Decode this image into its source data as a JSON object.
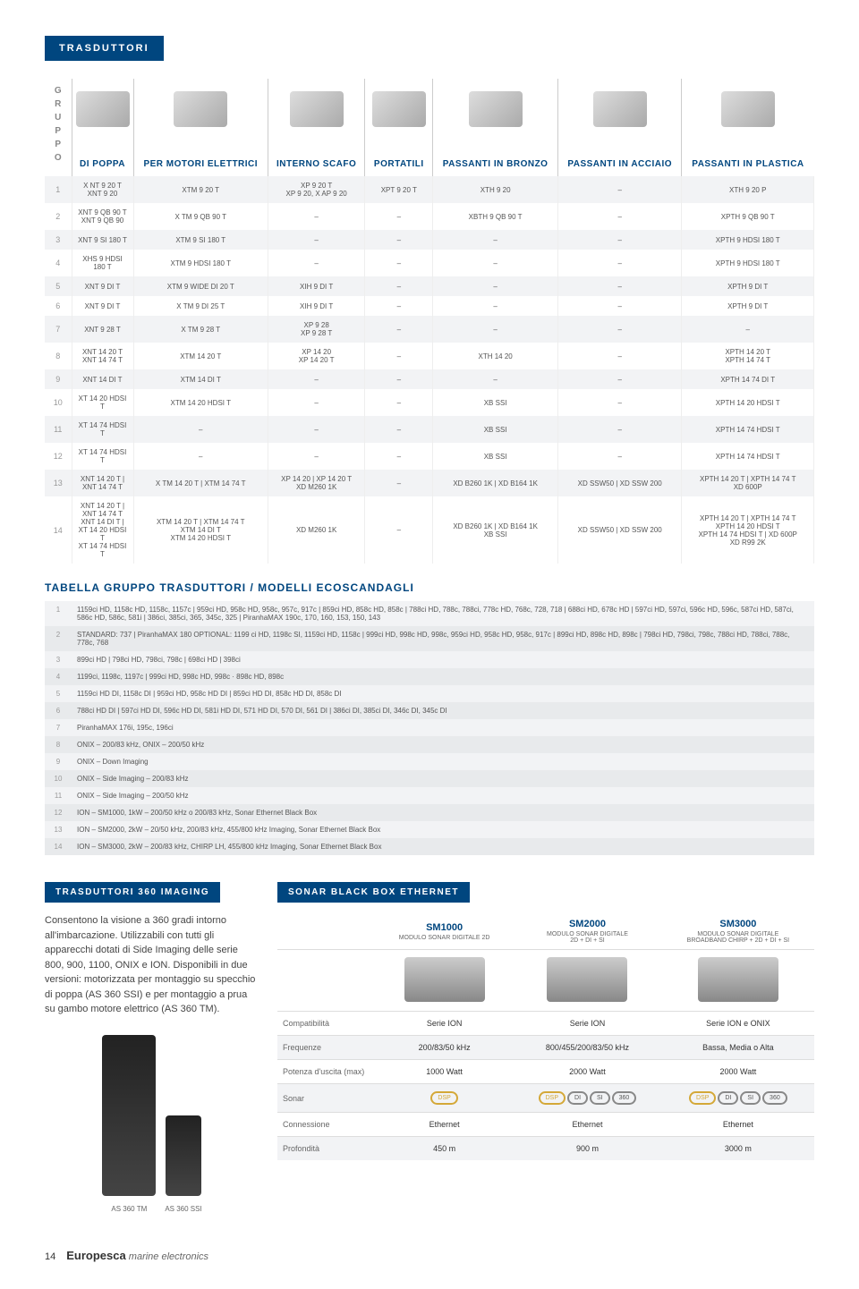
{
  "header": {
    "tab": "TRASDUTTORI"
  },
  "transTable": {
    "gruppoLabel": "GRUPPO",
    "columns": [
      "DI POPPA",
      "PER MOTORI ELETTRICI",
      "INTERNO SCAFO",
      "PORTATILI",
      "PASSANTI IN BRONZO",
      "PASSANTI IN ACCIAIO",
      "PASSANTI IN PLASTICA"
    ],
    "rows": [
      {
        "n": "1",
        "c": [
          "X NT 9 20 T\nXNT 9 20",
          "XTM 9 20 T",
          "XP 9 20 T\nXP 9 20, X AP 9 20",
          "XPT 9 20 T",
          "XTH 9 20",
          "–",
          "XTH 9 20 P"
        ]
      },
      {
        "n": "2",
        "c": [
          "XNT 9 QB 90 T\nXNT 9 QB 90",
          "X TM 9 QB 90 T",
          "–",
          "–",
          "XBTH 9 QB 90 T",
          "–",
          "XPTH 9 QB 90 T"
        ]
      },
      {
        "n": "3",
        "c": [
          "XNT 9 SI 180 T",
          "XTM 9 SI 180 T",
          "–",
          "–",
          "–",
          "–",
          "XPTH 9 HDSI 180 T"
        ]
      },
      {
        "n": "4",
        "c": [
          "XHS 9 HDSI 180 T",
          "XTM 9 HDSI 180 T",
          "–",
          "–",
          "–",
          "–",
          "XPTH 9 HDSI 180 T"
        ]
      },
      {
        "n": "5",
        "c": [
          "XNT 9 DI T",
          "XTM 9 WIDE DI 20 T",
          "XIH 9 DI T",
          "–",
          "–",
          "–",
          "XPTH 9 DI T"
        ]
      },
      {
        "n": "6",
        "c": [
          "XNT 9 DI T",
          "X TM 9 DI 25 T",
          "XIH 9 DI T",
          "–",
          "–",
          "–",
          "XPTH 9 DI T"
        ]
      },
      {
        "n": "7",
        "c": [
          "XNT 9 28 T",
          "X TM 9 28 T",
          "XP 9 28\nXP 9 28 T",
          "–",
          "–",
          "–",
          "–"
        ]
      },
      {
        "n": "8",
        "c": [
          "XNT 14 20 T\nXNT 14 74 T",
          "XTM 14 20 T",
          "XP 14 20\nXP 14 20 T",
          "–",
          "XTH 14 20",
          "–",
          "XPTH 14 20 T\nXPTH 14 74 T"
        ]
      },
      {
        "n": "9",
        "c": [
          "XNT 14 DI T",
          "XTM 14 DI T",
          "–",
          "–",
          "–",
          "–",
          "XPTH 14 74 DI T"
        ]
      },
      {
        "n": "10",
        "c": [
          "XT 14 20 HDSI T",
          "XTM 14 20 HDSI T",
          "–",
          "–",
          "XB SSI",
          "–",
          "XPTH 14 20 HDSI T"
        ]
      },
      {
        "n": "11",
        "c": [
          "XT 14 74 HDSI T",
          "–",
          "–",
          "–",
          "XB SSI",
          "–",
          "XPTH 14 74 HDSI T"
        ]
      },
      {
        "n": "12",
        "c": [
          "XT 14 74 HDSI T",
          "–",
          "–",
          "–",
          "XB SSI",
          "–",
          "XPTH 14 74 HDSI T"
        ]
      },
      {
        "n": "13",
        "c": [
          "XNT 14 20 T  |  XNT 14 74 T",
          "X TM 14 20 T  |  XTM 14 74 T",
          "XP 14 20  |  XP 14 20 T\nXD M260 1K",
          "–",
          "XD B260 1K  |  XD B164 1K",
          "XD SSW50  |  XD SSW 200",
          "XPTH 14 20 T  |  XPTH 14 74 T\nXD 600P"
        ]
      },
      {
        "n": "14",
        "c": [
          "XNT 14 20 T  |  XNT 14 74 T\nXNT 14 DI T  |  XT 14 20 HDSI T\nXT 14 74 HDSI T",
          "XTM 14 20 T  |  XTM 14 74 T\nXTM 14 DI T\nXTM 14 20 HDSI T",
          "XD M260 1K",
          "–",
          "XD B260 1K  |  XD B164 1K\nXB SSI",
          "XD SSW50  |  XD SSW 200",
          "XPTH 14 20 T  |  XPTH 14 74 T\nXPTH 14 20 HDSI T\nXPTH 14 74 HDSI T  |  XD 600P\nXD R99 2K"
        ]
      }
    ]
  },
  "modelSection": {
    "title": "TABELLA GRUPPO TRASDUTTORI / MODELLI ECOSCANDAGLI",
    "rows": [
      {
        "n": "1",
        "t": "1159ci HD, 1158c HD, 1158c, 1157c  |  959ci HD, 958c HD, 958c, 957c, 917c  |  859ci HD, 858c HD, 858c  |  788ci HD, 788c, 788ci, 778c HD, 768c, 728, 718  |  688ci HD, 678c HD  |  597ci HD, 597ci, 596c HD, 596c, 587ci HD, 587ci, 586c HD, 586c, 581i  |  386ci, 385ci, 365, 345c, 325  |  PiranhaMAX 190c, 170, 160, 153, 150, 143"
      },
      {
        "n": "2",
        "t": "STANDARD: 737  |  PiranhaMAX 180    OPTIONAL: 1199 ci HD, 1198c SI, 1159ci HD, 1158c  |  999ci HD, 998c HD, 998c, 959ci HD, 958c HD, 958c, 917c  |  899ci HD, 898c HD, 898c  |  798ci HD, 798ci, 798c, 788ci HD, 788ci, 788c, 778c, 768"
      },
      {
        "n": "3",
        "t": "899ci HD  |  798ci HD, 798ci, 798c  |  698ci HD  |  398ci"
      },
      {
        "n": "4",
        "t": "1199ci, 1198c, 1197c  |  999ci HD, 998c HD, 998c · 898c HD, 898c"
      },
      {
        "n": "5",
        "t": "1159ci HD DI, 1158c DI  |  959ci HD, 958c HD DI  |  859ci HD DI, 858c HD DI, 858c DI"
      },
      {
        "n": "6",
        "t": "788ci HD DI  |  597ci HD DI, 596c HD DI, 581i HD DI, 571 HD DI, 570 DI, 561 DI  |  386ci DI, 385ci DI, 346c DI, 345c DI"
      },
      {
        "n": "7",
        "t": "PiranhaMAX 176i, 195c, 196ci"
      },
      {
        "n": "8",
        "t": "ONIX – 200/83 kHz, ONIX – 200/50 kHz"
      },
      {
        "n": "9",
        "t": "ONIX – Down Imaging"
      },
      {
        "n": "10",
        "t": "ONIX – Side Imaging – 200/83 kHz"
      },
      {
        "n": "11",
        "t": "ONIX – Side Imaging – 200/50 kHz"
      },
      {
        "n": "12",
        "t": "ION – SM1000, 1kW – 200/50 kHz o 200/83 kHz, Sonar Ethernet Black Box"
      },
      {
        "n": "13",
        "t": "ION – SM2000, 2kW – 20/50 kHz, 200/83 kHz, 455/800 kHz Imaging, Sonar Ethernet Black Box"
      },
      {
        "n": "14",
        "t": "ION – SM3000, 2kW – 200/83 kHz, CHIRP LH, 455/800 kHz Imaging, Sonar Ethernet Black Box"
      }
    ]
  },
  "imaging360": {
    "tab": "TRASDUTTORI 360 IMAGING",
    "desc": "Consentono la visione a 360 gradi intorno all'imbarcazione. Utilizzabili con tutti gli apparecchi dotati di Side Imaging delle serie 800, 900, 1100, ONIX e ION. Disponibili in due versioni: motorizzata per montaggio su specchio di poppa (AS 360 SSI) e per montaggio a prua su gambo motore elettrico (AS 360 TM).",
    "label1": "AS 360 TM",
    "label2": "AS 360 SSI"
  },
  "sonar": {
    "header": "SONAR BLACK BOX ETHERNET",
    "cols": [
      {
        "name": "SM1000",
        "sub": "MODULO SONAR DIGITALE 2D"
      },
      {
        "name": "SM2000",
        "sub": "MODULO SONAR DIGITALE\n2D + DI + SI"
      },
      {
        "name": "SM3000",
        "sub": "MODULO SONAR DIGITALE\nBROADBAND CHIRP + 2D + DI + SI"
      }
    ],
    "rows": [
      {
        "label": "Compatibilità",
        "v": [
          "Serie ION",
          "Serie ION",
          "Serie ION e ONIX"
        ]
      },
      {
        "label": "Frequenze",
        "v": [
          "200/83/50 kHz",
          "800/455/200/83/50 kHz",
          "Bassa, Media o Alta"
        ]
      },
      {
        "label": "Potenza d'uscita (max)",
        "v": [
          "1000 Watt",
          "2000 Watt",
          "2000 Watt"
        ]
      },
      {
        "label": "Sonar",
        "v": [
          "__ICONS1__",
          "__ICONS2__",
          "__ICONS2__"
        ]
      },
      {
        "label": "Connessione",
        "v": [
          "Ethernet",
          "Ethernet",
          "Ethernet"
        ]
      },
      {
        "label": "Profondità",
        "v": [
          "450 m",
          "900 m",
          "3000 m"
        ]
      }
    ],
    "iconSets": {
      "__ICONS1__": [
        "DSP"
      ],
      "__ICONS2__": [
        "DSP",
        "DI",
        "SI",
        "360"
      ]
    }
  },
  "footer": {
    "pageNum": "14",
    "brand": "Europesca",
    "tagline": "marine electronics"
  },
  "colors": {
    "primary": "#00467f",
    "rowAlt": "#f2f3f5",
    "rowAlt2": "#e8eaec",
    "text": "#555",
    "border": "#ccc"
  }
}
